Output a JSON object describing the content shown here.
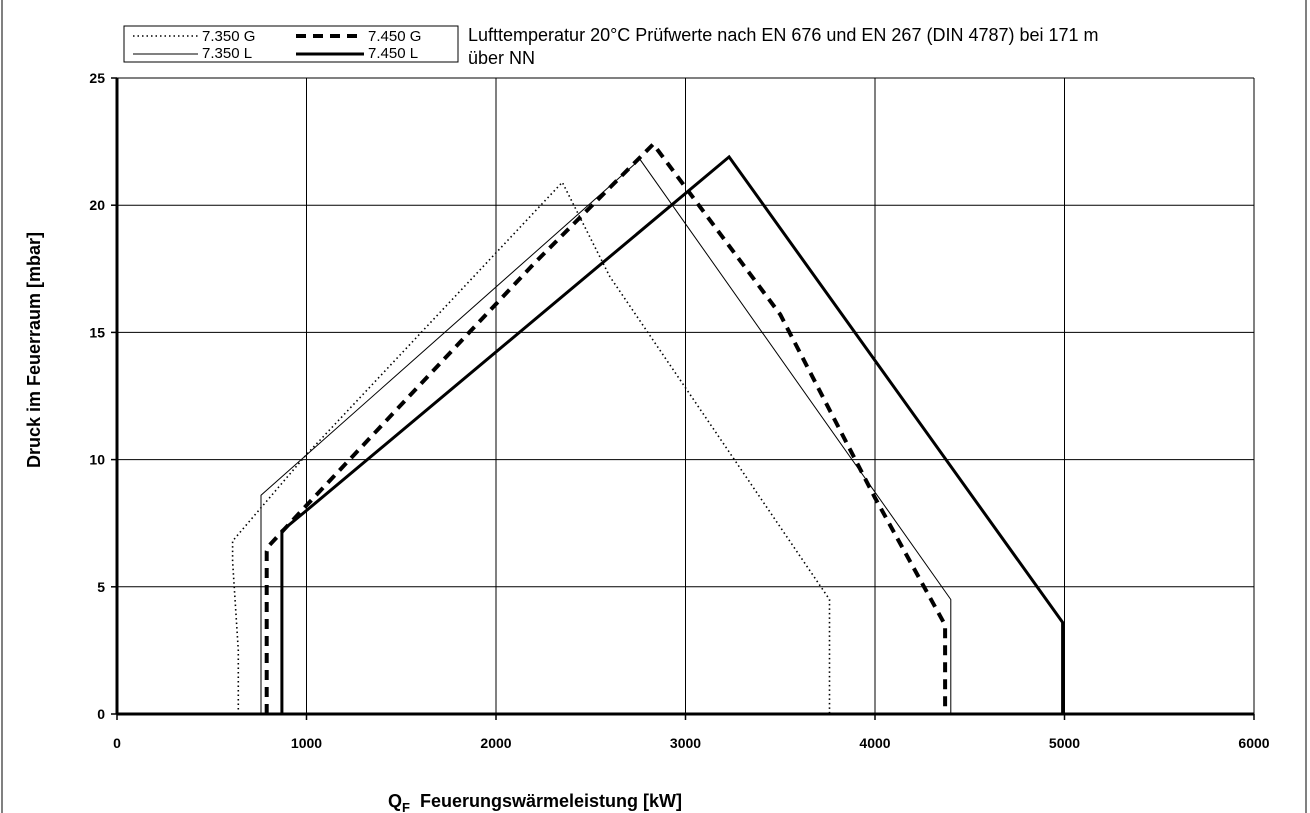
{
  "chart_data": {
    "type": "line",
    "title": "",
    "annotation": [
      "Lufttemperatur 20°C Prüfwerte nach EN 676 und EN 267 (DIN 4787) bei 171 m",
      "über NN"
    ],
    "xlabel_symbol": "Q",
    "xlabel_sub": "F",
    "xlabel_text": "Feuerungswärmeleistung [kW]",
    "ylabel": "Druck im Feuerraum [mbar]",
    "xlim": [
      0,
      6000
    ],
    "ylim": [
      0,
      25
    ],
    "xticks": [
      "0",
      "1000",
      "2000",
      "3000",
      "4000",
      "5000",
      "6000"
    ],
    "yticks": [
      "0",
      "5",
      "10",
      "15",
      "20",
      "25"
    ],
    "grid": true,
    "legend_position": "top-left",
    "series": [
      {
        "name": "7.350 G",
        "style": "dotted",
        "x": [
          640,
          640,
          610,
          610,
          1000,
          2350,
          2600,
          3760,
          3760
        ],
        "y": [
          0,
          2.5,
          6.0,
          6.8,
          10.2,
          20.9,
          17.2,
          4.5,
          0
        ]
      },
      {
        "name": "7.450 G",
        "style": "dashed",
        "x": [
          790,
          790,
          800,
          1000,
          2200,
          2830,
          3500,
          4000,
          4370,
          4370
        ],
        "y": [
          0,
          6.4,
          6.6,
          8.2,
          17.7,
          22.4,
          15.7,
          8.5,
          3.5,
          0
        ]
      },
      {
        "name": "7.350 L",
        "style": "thin",
        "x": [
          760,
          760,
          2760,
          4400,
          4400
        ],
        "y": [
          0,
          8.6,
          21.8,
          4.5,
          0
        ]
      },
      {
        "name": "7.450 L",
        "style": "thick",
        "x": [
          870,
          870,
          1000,
          3230,
          4990,
          4990
        ],
        "y": [
          0,
          7.2,
          8.0,
          21.9,
          3.6,
          0
        ]
      }
    ]
  }
}
